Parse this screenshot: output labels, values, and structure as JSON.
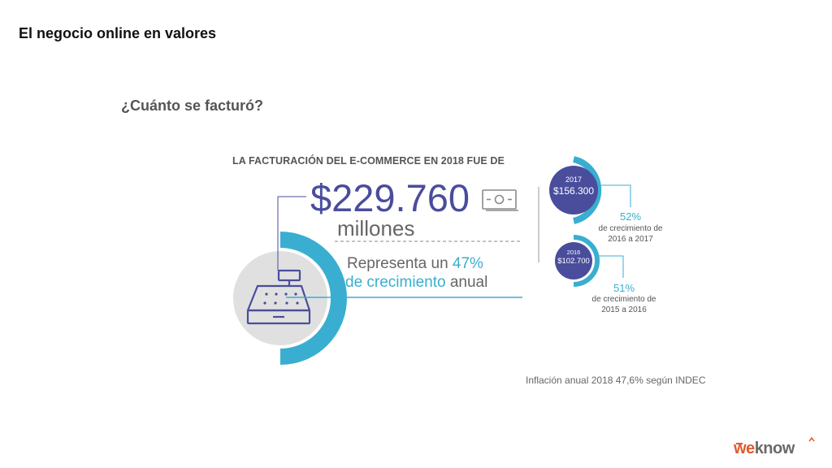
{
  "slide": {
    "title": "El negocio online en valores",
    "question": "¿Cuánto se facturó?",
    "headline": "LA FACTURACIÓN DEL E-COMMERCE EN 2018 FUE DE",
    "amount": "$229.760",
    "amount_unit": "millones",
    "growth_line1_prefix": "Representa un ",
    "growth_line1_pct": "47%",
    "growth_line2_accent": "de crecimiento",
    "growth_line2_suffix": " anual"
  },
  "years": [
    {
      "year": "2017",
      "value": "$156.300",
      "growth_pct": "52%",
      "growth_desc_1": "de crecimiento de",
      "growth_desc_2": "2016 a 2017"
    },
    {
      "year": "2016",
      "value": "$102.700",
      "growth_pct": "51%",
      "growth_desc_1": "de crecimiento de",
      "growth_desc_2": "2015 a 2016"
    }
  ],
  "note": "Inflación anual 2018 47,6% según INDEC",
  "logo": {
    "part1": "we",
    "part2": "know"
  },
  "colors": {
    "primary": "#4a4d9c",
    "accent": "#3aaed0",
    "logo_orange": "#e2592d",
    "circle_gray": "#e0e0e0"
  },
  "icons": [
    "cash-register-icon",
    "banknote-icon"
  ]
}
